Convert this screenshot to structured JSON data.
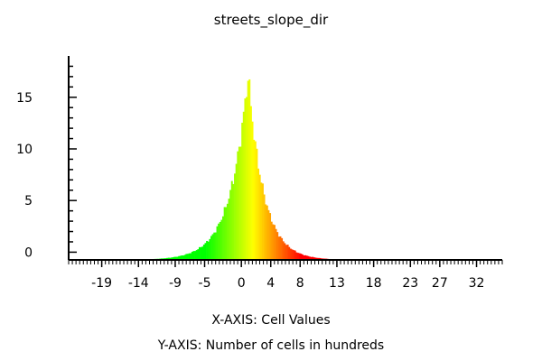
{
  "chart_data": {
    "type": "bar",
    "title": "streets_slope_dir",
    "xlabel": "X-AXIS: Cell Values",
    "ylabel": "Y-AXIS: Number of cells in hundreds",
    "xlim": [
      -23.5,
      35.5
    ],
    "ylim": [
      -0.75,
      19
    ],
    "x_ticks": [
      -19,
      -14,
      -9,
      -5,
      0,
      4,
      8,
      13,
      18,
      23,
      27,
      32
    ],
    "y_ticks": [
      0,
      5,
      10,
      15
    ],
    "grid": false,
    "legend": "none",
    "bin_width": 0.2,
    "colormap": [
      "#00ff00",
      "#ffff00",
      "#ff0000"
    ],
    "colormap_range": [
      -5,
      8
    ],
    "distribution": {
      "shape": "laplace-like",
      "peak_x": 0.8,
      "peak_count": 18.0,
      "left_scale": 2.4,
      "right_scale": 2.1,
      "x_range": [
        -19,
        20
      ]
    }
  }
}
